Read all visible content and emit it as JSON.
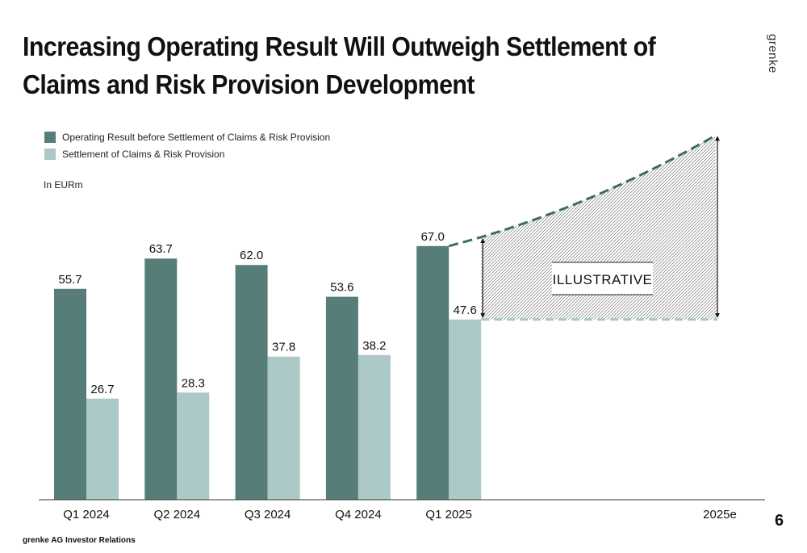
{
  "header": {
    "title": "Increasing Operating Result Will Outweigh Settlement of Claims and Risk Provision Development",
    "brand": "grenke"
  },
  "footer": {
    "source": "grenke AG Investor Relations",
    "page_number": "6"
  },
  "colors": {
    "operating": "#567d77",
    "settlement": "#acc8c7",
    "projection_line": "#3f6a63",
    "projection_dash_light": "#a9c8c5"
  },
  "chart_data": {
    "type": "bar",
    "unit_label": "In EURm",
    "categories": [
      "Q1 2024",
      "Q2 2024",
      "Q3 2024",
      "Q4 2024",
      "Q1 2025",
      "2025e"
    ],
    "series": [
      {
        "name": "Operating Result before Settlement of Claims & Risk Provision",
        "values": [
          55.7,
          63.7,
          62.0,
          53.6,
          67.0,
          null
        ]
      },
      {
        "name": "Settlement of Claims & Risk Provision",
        "values": [
          26.7,
          28.3,
          37.8,
          38.2,
          47.6,
          null
        ]
      }
    ],
    "data_labels": {
      "operating": [
        "55.7",
        "63.7",
        "62.0",
        "53.6",
        "67.0"
      ],
      "settlement": [
        "26.7",
        "28.3",
        "37.8",
        "38.2",
        "47.6"
      ]
    },
    "projection": {
      "label": "ILLUSTRATIVE",
      "operating_2025e": 96.5,
      "settlement_2025e": 47.6
    },
    "ylim": [
      0,
      100
    ],
    "legend_position": "top-left",
    "grid": false
  }
}
